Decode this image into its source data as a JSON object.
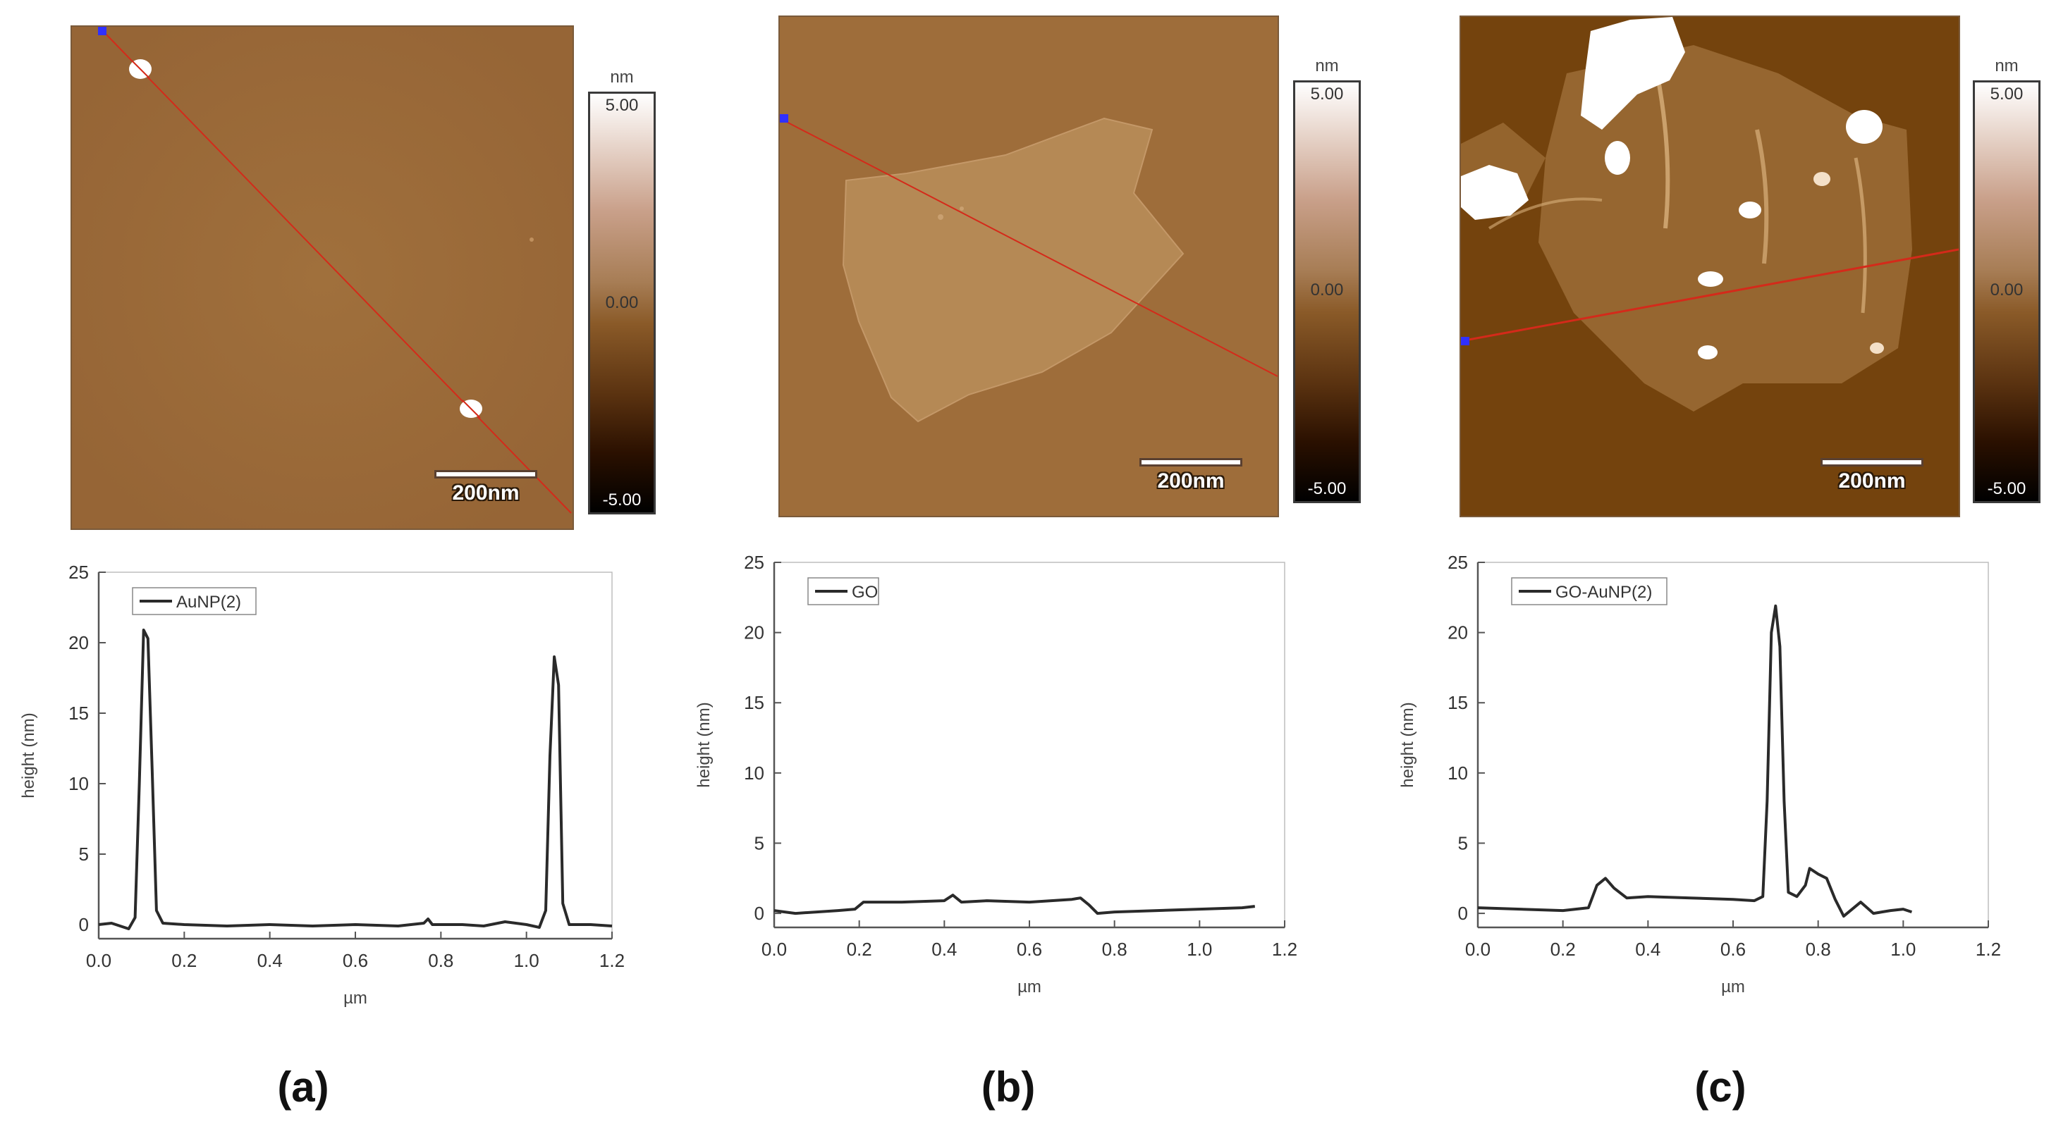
{
  "panels": [
    {
      "letter": "(a)",
      "scale_label": "200nm",
      "colorbar": {
        "unit": "nm",
        "max": "5.00",
        "mid": "0.00",
        "min": "-5.00"
      }
    },
    {
      "letter": "(b)",
      "scale_label": "200nm",
      "colorbar": {
        "unit": "nm",
        "max": "5.00",
        "mid": "0.00",
        "min": "-5.00"
      }
    },
    {
      "letter": "(c)",
      "scale_label": "200nm",
      "colorbar": {
        "unit": "nm",
        "max": "5.00",
        "mid": "0.00",
        "min": "-5.00"
      }
    }
  ],
  "colors": {
    "afm_base": "#9a6a38",
    "line": "#d42a1a",
    "marker": "#3030ff",
    "trace": "#2a2a2a"
  },
  "chart_data": [
    {
      "type": "line",
      "xlabel": "µm",
      "ylabel": "height (nm)",
      "xlim": [
        0,
        1.2
      ],
      "ylim": [
        -1,
        25
      ],
      "xticks": [
        "0.0",
        "0.2",
        "0.4",
        "0.6",
        "0.8",
        "1.0",
        "1.2"
      ],
      "yticks": [
        "0",
        "5",
        "10",
        "15",
        "20",
        "25"
      ],
      "grid": false,
      "legend": "top-left",
      "series": [
        {
          "name": "AuNP(2)",
          "x": [
            0.0,
            0.03,
            0.07,
            0.085,
            0.095,
            0.105,
            0.115,
            0.125,
            0.135,
            0.15,
            0.2,
            0.3,
            0.4,
            0.5,
            0.6,
            0.7,
            0.76,
            0.77,
            0.78,
            0.85,
            0.9,
            0.95,
            1.0,
            1.03,
            1.045,
            1.055,
            1.065,
            1.075,
            1.085,
            1.1,
            1.15,
            1.2
          ],
          "y": [
            0.0,
            0.1,
            -0.3,
            0.5,
            10,
            20.9,
            20.3,
            11,
            1.0,
            0.1,
            0.0,
            -0.1,
            0.0,
            -0.1,
            0.0,
            -0.1,
            0.1,
            0.4,
            0.0,
            0.0,
            -0.1,
            0.2,
            0.0,
            -0.2,
            1.0,
            12,
            19.0,
            17,
            1.5,
            0.0,
            0.0,
            -0.1
          ]
        }
      ]
    },
    {
      "type": "line",
      "xlabel": "µm",
      "ylabel": "height (nm)",
      "xlim": [
        0,
        1.2
      ],
      "ylim": [
        -1,
        25
      ],
      "xticks": [
        "0.0",
        "0.2",
        "0.4",
        "0.6",
        "0.8",
        "1.0",
        "1.2"
      ],
      "yticks": [
        "0",
        "5",
        "10",
        "15",
        "20",
        "25"
      ],
      "grid": false,
      "legend": "top-left",
      "series": [
        {
          "name": "GO",
          "x": [
            0.0,
            0.05,
            0.1,
            0.15,
            0.19,
            0.21,
            0.3,
            0.4,
            0.42,
            0.44,
            0.5,
            0.6,
            0.7,
            0.72,
            0.74,
            0.76,
            0.8,
            0.9,
            1.0,
            1.1,
            1.13
          ],
          "y": [
            0.2,
            0.0,
            0.1,
            0.2,
            0.3,
            0.8,
            0.8,
            0.9,
            1.3,
            0.8,
            0.9,
            0.8,
            1.0,
            1.1,
            0.6,
            0.0,
            0.1,
            0.2,
            0.3,
            0.4,
            0.5
          ]
        }
      ]
    },
    {
      "type": "line",
      "xlabel": "µm",
      "ylabel": "height (nm)",
      "xlim": [
        0,
        1.2
      ],
      "ylim": [
        -1,
        25
      ],
      "xticks": [
        "0.0",
        "0.2",
        "0.4",
        "0.6",
        "0.8",
        "1.0",
        "1.2"
      ],
      "yticks": [
        "0",
        "5",
        "10",
        "15",
        "20",
        "25"
      ],
      "grid": false,
      "legend": "top-left",
      "series": [
        {
          "name": "GO-AuNP(2)",
          "x": [
            0.0,
            0.1,
            0.2,
            0.26,
            0.28,
            0.3,
            0.32,
            0.35,
            0.4,
            0.5,
            0.6,
            0.65,
            0.67,
            0.68,
            0.69,
            0.7,
            0.71,
            0.72,
            0.73,
            0.75,
            0.77,
            0.78,
            0.8,
            0.82,
            0.84,
            0.86,
            0.9,
            0.93,
            0.97,
            1.0,
            1.02
          ],
          "y": [
            0.4,
            0.3,
            0.2,
            0.4,
            2.0,
            2.5,
            1.8,
            1.1,
            1.2,
            1.1,
            1.0,
            0.9,
            1.2,
            8.0,
            20,
            21.9,
            19,
            8.0,
            1.5,
            1.2,
            2.0,
            3.2,
            2.8,
            2.5,
            1.0,
            -0.2,
            0.8,
            0.0,
            0.2,
            0.3,
            0.1
          ]
        }
      ]
    }
  ]
}
